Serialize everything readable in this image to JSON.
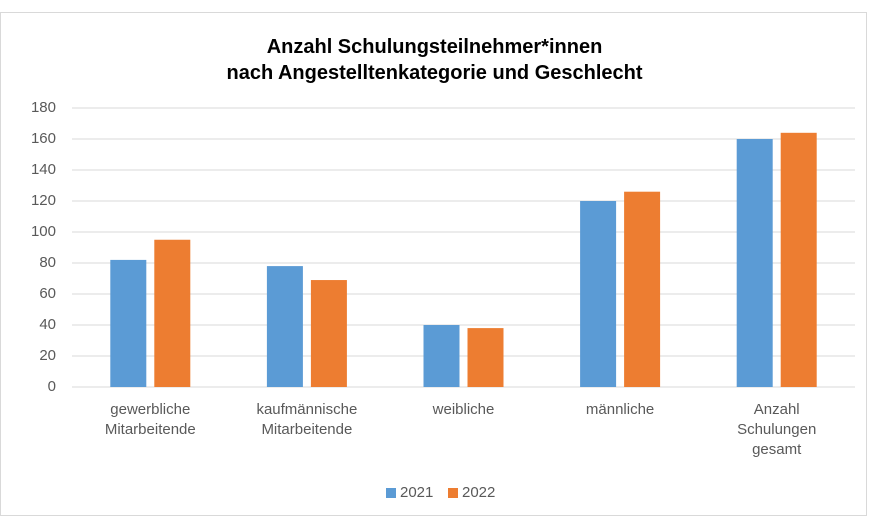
{
  "chart_data": {
    "type": "bar",
    "title": "Anzahl Schulungsteilnehmer*innen\nnach Angestelltenkategorie und Geschlecht",
    "categories": [
      "gewerbliche\nMitarbeitende",
      "kaufmännische\nMitarbeitende",
      "weibliche",
      "männliche",
      "Anzahl\nSchulungen\ngesamt"
    ],
    "series": [
      {
        "name": "2021",
        "color": "#5b9bd5",
        "values": [
          82,
          78,
          40,
          120,
          160
        ]
      },
      {
        "name": "2022",
        "color": "#ed7d31",
        "values": [
          95,
          69,
          38,
          126,
          164
        ]
      }
    ],
    "ylim": [
      0,
      180
    ],
    "yticks": [
      0,
      20,
      40,
      60,
      80,
      100,
      120,
      140,
      160,
      180
    ],
    "grid": true,
    "legend": "bottom"
  }
}
